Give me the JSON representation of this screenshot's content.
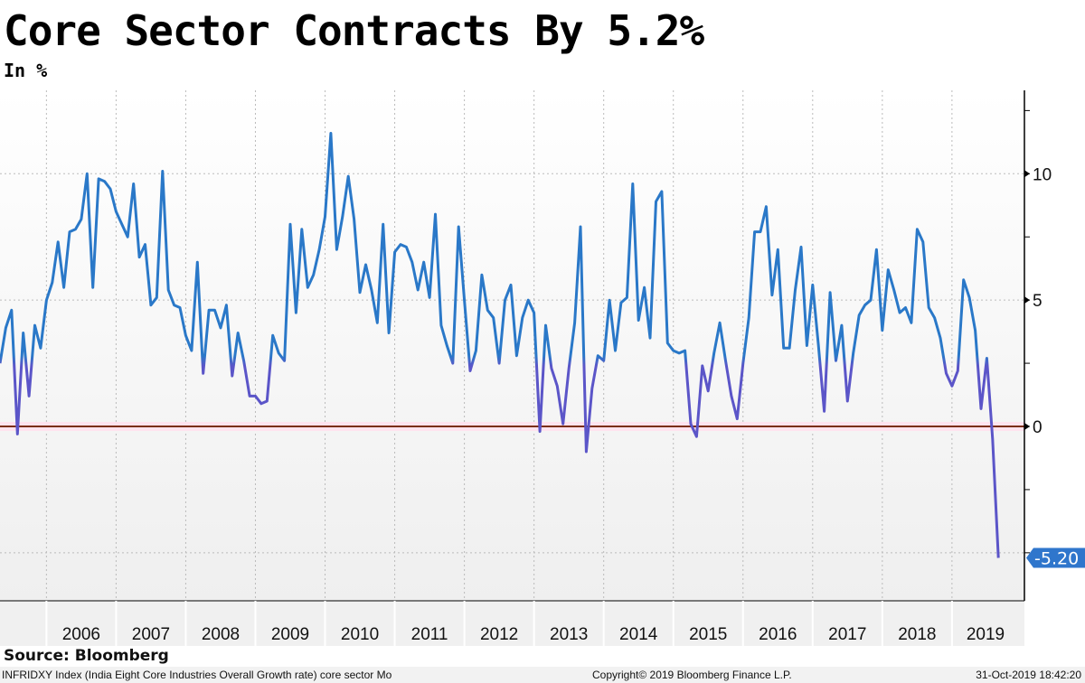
{
  "chart_data": {
    "type": "line",
    "title": "Core Sector Contracts By 5.2%",
    "subtitle": "In %",
    "ylim": [
      -6.9,
      13.3
    ],
    "y_ticks": [
      10,
      5,
      0
    ],
    "y_axis_position": "right",
    "x_tick_labels": [
      "2006",
      "2007",
      "2008",
      "2009",
      "2010",
      "2011",
      "2012",
      "2013",
      "2014",
      "2015",
      "2016",
      "2017",
      "2018",
      "2019"
    ],
    "grid": true,
    "reference_line": {
      "value": 0,
      "color": "#7a2e10"
    },
    "last_value_label": "-5.20",
    "colors": {
      "line_high": "#2a78c8",
      "line_low": "#5b55c8",
      "badge": "#2f76cc"
    },
    "series": [
      {
        "x": [
          "2005-05",
          "2005-06",
          "2005-07",
          "2005-08",
          "2005-09",
          "2005-10",
          "2005-11",
          "2005-12",
          "2006-01",
          "2006-02",
          "2006-03",
          "2006-04",
          "2006-05",
          "2006-06",
          "2006-07",
          "2006-08",
          "2006-09",
          "2006-10",
          "2006-11",
          "2006-12",
          "2007-01",
          "2007-02",
          "2007-03",
          "2007-04",
          "2007-05",
          "2007-06",
          "2007-07",
          "2007-08",
          "2007-09",
          "2007-10",
          "2007-11",
          "2007-12",
          "2008-01",
          "2008-02",
          "2008-03",
          "2008-04",
          "2008-05",
          "2008-06",
          "2008-07",
          "2008-08",
          "2008-09",
          "2008-10",
          "2008-11",
          "2008-12",
          "2009-01",
          "2009-02",
          "2009-03",
          "2009-04",
          "2009-05",
          "2009-06",
          "2009-07",
          "2009-08",
          "2009-09",
          "2009-10",
          "2009-11",
          "2009-12",
          "2010-01",
          "2010-02",
          "2010-03",
          "2010-04",
          "2010-05",
          "2010-06",
          "2010-07",
          "2010-08",
          "2010-09",
          "2010-10",
          "2010-11",
          "2010-12",
          "2011-01",
          "2011-02",
          "2011-03",
          "2011-04",
          "2011-05",
          "2011-06",
          "2011-07",
          "2011-08",
          "2011-09",
          "2011-10",
          "2011-11",
          "2011-12",
          "2012-01",
          "2012-02",
          "2012-03",
          "2012-04",
          "2012-05",
          "2012-06",
          "2012-07",
          "2012-08",
          "2012-09",
          "2012-10",
          "2012-11",
          "2012-12",
          "2013-01",
          "2013-02",
          "2013-03",
          "2013-04",
          "2013-05",
          "2013-06",
          "2013-07",
          "2013-08",
          "2013-09",
          "2013-10",
          "2013-11",
          "2013-12",
          "2014-01",
          "2014-02",
          "2014-03",
          "2014-04",
          "2014-05",
          "2014-06",
          "2014-07",
          "2014-08",
          "2014-09",
          "2014-10",
          "2014-11",
          "2014-12",
          "2015-01",
          "2015-02",
          "2015-03",
          "2015-04",
          "2015-05",
          "2015-06",
          "2015-07",
          "2015-08",
          "2015-09",
          "2015-10",
          "2015-11",
          "2015-12",
          "2016-01",
          "2016-02",
          "2016-03",
          "2016-04",
          "2016-05",
          "2016-06",
          "2016-07",
          "2016-08",
          "2016-09",
          "2016-10",
          "2016-11",
          "2016-12",
          "2017-01",
          "2017-02",
          "2017-03",
          "2017-04",
          "2017-05",
          "2017-06",
          "2017-07",
          "2017-08",
          "2017-09",
          "2017-10",
          "2017-11",
          "2017-12",
          "2018-01",
          "2018-02",
          "2018-03",
          "2018-04",
          "2018-05",
          "2018-06",
          "2018-07",
          "2018-08",
          "2018-09",
          "2018-10",
          "2018-11",
          "2018-12",
          "2019-01",
          "2019-02",
          "2019-03",
          "2019-04",
          "2019-05",
          "2019-06",
          "2019-07",
          "2019-08",
          "2019-09"
        ],
        "values": [
          2.5,
          3.9,
          4.6,
          -0.3,
          3.7,
          1.2,
          4.0,
          3.1,
          5.0,
          5.7,
          7.3,
          5.5,
          7.7,
          7.8,
          8.2,
          10.0,
          5.5,
          9.8,
          9.7,
          9.4,
          8.5,
          8.0,
          7.5,
          9.6,
          6.7,
          7.2,
          4.8,
          5.1,
          10.1,
          5.4,
          4.8,
          4.7,
          3.6,
          3.0,
          6.5,
          2.1,
          4.6,
          4.6,
          3.9,
          4.8,
          2.0,
          3.7,
          2.6,
          1.2,
          1.2,
          0.9,
          1.0,
          3.6,
          2.9,
          2.6,
          8.0,
          4.5,
          7.8,
          5.5,
          6.0,
          7.0,
          8.3,
          11.6,
          7.0,
          8.3,
          9.9,
          8.2,
          5.3,
          6.4,
          5.4,
          4.1,
          8.0,
          3.7,
          6.9,
          7.2,
          7.1,
          6.5,
          5.4,
          6.5,
          5.1,
          8.4,
          4.0,
          3.2,
          2.5,
          7.9,
          5.0,
          2.2,
          3.0,
          6.0,
          4.6,
          4.3,
          2.5,
          5.0,
          5.6,
          2.8,
          4.3,
          5.0,
          4.5,
          -0.2,
          4.0,
          2.3,
          1.6,
          0.1,
          2.3,
          4.1,
          7.9,
          -1.0,
          1.5,
          2.8,
          2.6,
          5.0,
          3.0,
          4.9,
          5.1,
          9.6,
          4.2,
          5.5,
          3.5,
          8.9,
          9.3,
          3.3,
          3.0,
          2.9,
          3.0,
          0.1,
          -0.4,
          2.4,
          1.4,
          2.9,
          4.1,
          2.6,
          1.2,
          0.3,
          2.5,
          4.3,
          7.7,
          7.7,
          8.7,
          5.2,
          7.0,
          3.1,
          3.1,
          5.4,
          7.1,
          3.2,
          5.6,
          3.2,
          0.6,
          5.3,
          2.6,
          4.0,
          1.0,
          2.9,
          4.4,
          4.8,
          5.0,
          7.0,
          3.8,
          6.2,
          5.4,
          4.5,
          4.7,
          4.1,
          7.8,
          7.3,
          4.7,
          4.3,
          3.5,
          2.1,
          1.6,
          2.2,
          5.8,
          5.1,
          3.8,
          0.7,
          2.7,
          -0.5,
          -5.2
        ]
      }
    ]
  },
  "footer": {
    "source": "Source: Bloomberg",
    "description": "INFRIDXY Index (India Eight Core Industries Overall Growth rate) core sector  Mo",
    "copyright": "Copyright© 2019 Bloomberg Finance L.P.",
    "timestamp": "31-Oct-2019 18:42:20"
  }
}
